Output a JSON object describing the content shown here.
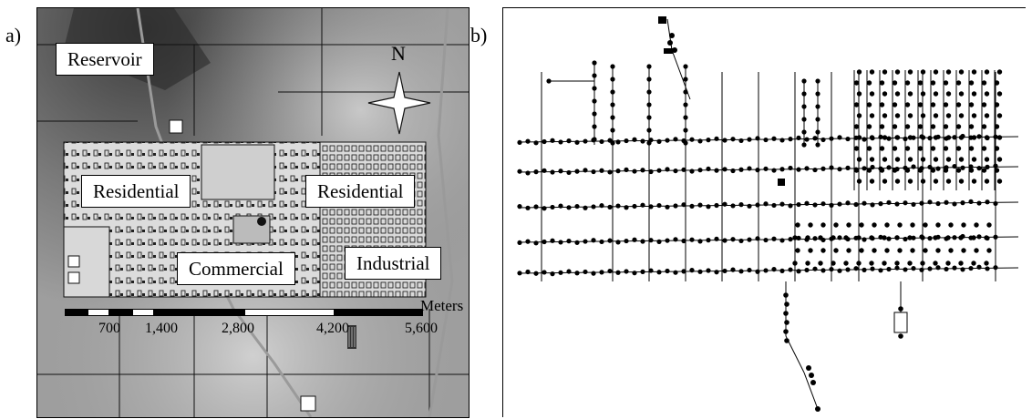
{
  "panels": {
    "a_label": "a)",
    "b_label": "b)"
  },
  "map_a": {
    "zones": {
      "reservoir": "Reservoir",
      "residential_west": "Residential",
      "residential_east": "Residential",
      "commercial": "Commercial",
      "industrial": "Industrial"
    },
    "north_arrow_label": "N",
    "scale_bar": {
      "unit": "Meters",
      "ticks": [
        "700",
        "1,400",
        "2,800",
        "4,200",
        "5,600"
      ]
    },
    "colors": {
      "terrain_dark": "#4a4a4a",
      "terrain_light": "#bdbdbd",
      "urban_block": "#d6d6d6",
      "road": "#9a9a9a"
    }
  },
  "map_b": {
    "node_color": "#000000",
    "pipe_color": "#000000"
  }
}
